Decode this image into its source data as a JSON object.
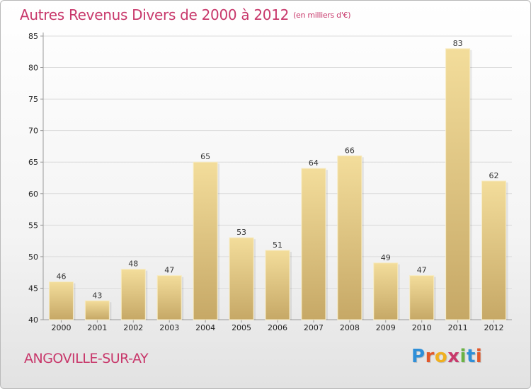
{
  "header": {
    "title": "Autres Revenus Divers de 2000 à 2012",
    "subtitle": "(en milliers d'€)"
  },
  "footer": {
    "city": "ANGOVILLE-SUR-AY",
    "logo_text": "Proxiti",
    "logo_colors": [
      "#2f8fd8",
      "#e2582a",
      "#f0b020",
      "#c8386b",
      "#6ab344",
      "#2f8fd8",
      "#e2582a"
    ]
  },
  "colors": {
    "title": "#c8386b",
    "bar_light": "#f3dd9b",
    "bar_dark": "#c6a866",
    "axis": "#9a9a9a",
    "grid": "#dcdcdc"
  },
  "chart_data": {
    "type": "bar",
    "categories": [
      "2000",
      "2001",
      "2002",
      "2003",
      "2004",
      "2005",
      "2006",
      "2007",
      "2008",
      "2009",
      "2010",
      "2011",
      "2012"
    ],
    "values": [
      46,
      43,
      48,
      47,
      65,
      53,
      51,
      64,
      66,
      49,
      47,
      83,
      62
    ],
    "title": "Autres Revenus Divers de 2000 à 2012",
    "subtitle": "(en milliers d'€)",
    "ylim": [
      40,
      85
    ],
    "yticks": [
      40,
      45,
      50,
      55,
      60,
      65,
      70,
      75,
      80,
      85
    ],
    "grid": true,
    "data_labels": true
  }
}
